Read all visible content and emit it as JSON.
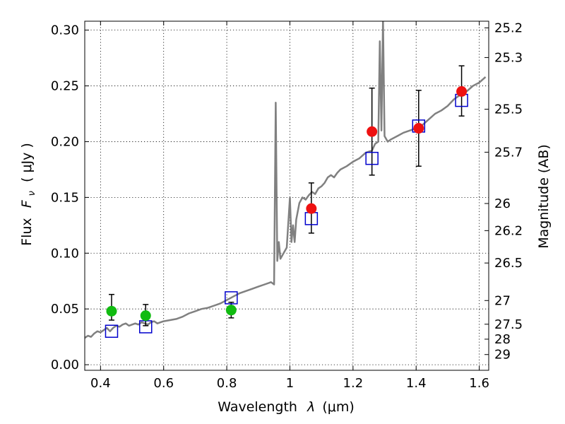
{
  "chart_data": {
    "type": "scatter",
    "xlabel_main": "Wavelength",
    "xlabel_symbol": "λ",
    "xlabel_unit": "(μm)",
    "ylabel_prefix": "Flux",
    "ylabel_symbol": "F",
    "ylabel_subscript": "ν",
    "ylabel_unit": "( μJy )",
    "y2label": "Magnitude (AB)",
    "xlim": [
      0.35,
      1.63
    ],
    "ylim": [
      -0.005,
      0.308
    ],
    "grid": true,
    "x_ticks": [
      {
        "value": 0.4,
        "label": "0.4"
      },
      {
        "value": 0.6,
        "label": "0.6"
      },
      {
        "value": 0.8,
        "label": "0.8"
      },
      {
        "value": 1.0,
        "label": "1"
      },
      {
        "value": 1.2,
        "label": "1.2"
      },
      {
        "value": 1.4,
        "label": "1.4"
      },
      {
        "value": 1.6,
        "label": "1.6"
      }
    ],
    "y_ticks": [
      {
        "value": 0.0,
        "label": "0.00"
      },
      {
        "value": 0.05,
        "label": "0.05"
      },
      {
        "value": 0.1,
        "label": "0.10"
      },
      {
        "value": 0.15,
        "label": "0.15"
      },
      {
        "value": 0.2,
        "label": "0.20"
      },
      {
        "value": 0.25,
        "label": "0.25"
      },
      {
        "value": 0.3,
        "label": "0.30"
      }
    ],
    "y2_ticks": [
      {
        "label": "25.2",
        "mag": 25.2
      },
      {
        "label": "25.3",
        "mag": 25.3
      },
      {
        "label": "25.5",
        "mag": 25.5
      },
      {
        "label": "25.7",
        "mag": 25.7
      },
      {
        "label": "26",
        "mag": 26
      },
      {
        "label": "26.2",
        "mag": 26.2
      },
      {
        "label": "26.5",
        "mag": 26.5
      },
      {
        "label": "27",
        "mag": 27
      },
      {
        "label": "27.5",
        "mag": 27.5
      },
      {
        "label": "28",
        "mag": 28
      },
      {
        "label": "29",
        "mag": 29
      }
    ],
    "colors": {
      "model": "#808080",
      "optical_points": "#11bb11",
      "nir_points": "#ee1111",
      "model_boxes": "#0000cc",
      "errorbars": "#000000"
    },
    "model_spectrum": {
      "x": [
        0.35,
        0.36,
        0.37,
        0.38,
        0.39,
        0.4,
        0.41,
        0.42,
        0.43,
        0.44,
        0.45,
        0.46,
        0.47,
        0.48,
        0.49,
        0.5,
        0.51,
        0.52,
        0.53,
        0.54,
        0.55,
        0.56,
        0.57,
        0.58,
        0.59,
        0.6,
        0.62,
        0.64,
        0.66,
        0.68,
        0.7,
        0.72,
        0.74,
        0.76,
        0.78,
        0.8,
        0.82,
        0.84,
        0.86,
        0.88,
        0.9,
        0.92,
        0.94,
        0.95,
        0.955,
        0.96,
        0.965,
        0.97,
        0.98,
        0.99,
        1.0,
        1.005,
        1.01,
        1.015,
        1.02,
        1.03,
        1.04,
        1.05,
        1.06,
        1.07,
        1.08,
        1.09,
        1.1,
        1.11,
        1.12,
        1.13,
        1.14,
        1.15,
        1.16,
        1.18,
        1.2,
        1.22,
        1.24,
        1.26,
        1.27,
        1.28,
        1.285,
        1.29,
        1.295,
        1.3,
        1.31,
        1.32,
        1.34,
        1.36,
        1.38,
        1.4,
        1.42,
        1.44,
        1.46,
        1.48,
        1.5,
        1.52,
        1.54,
        1.56,
        1.58,
        1.6,
        1.62
      ],
      "y": [
        0.024,
        0.026,
        0.025,
        0.028,
        0.03,
        0.029,
        0.031,
        0.033,
        0.03,
        0.033,
        0.035,
        0.034,
        0.036,
        0.037,
        0.035,
        0.036,
        0.037,
        0.036,
        0.038,
        0.037,
        0.036,
        0.038,
        0.039,
        0.037,
        0.038,
        0.039,
        0.04,
        0.041,
        0.043,
        0.046,
        0.048,
        0.05,
        0.051,
        0.053,
        0.055,
        0.058,
        0.061,
        0.064,
        0.066,
        0.068,
        0.07,
        0.072,
        0.074,
        0.072,
        0.235,
        0.093,
        0.11,
        0.095,
        0.1,
        0.105,
        0.15,
        0.11,
        0.125,
        0.11,
        0.13,
        0.145,
        0.15,
        0.148,
        0.152,
        0.155,
        0.153,
        0.158,
        0.16,
        0.163,
        0.168,
        0.17,
        0.168,
        0.172,
        0.175,
        0.178,
        0.182,
        0.185,
        0.19,
        0.192,
        0.198,
        0.2,
        0.29,
        0.21,
        0.31,
        0.205,
        0.2,
        0.202,
        0.205,
        0.208,
        0.21,
        0.212,
        0.215,
        0.22,
        0.225,
        0.228,
        0.232,
        0.238,
        0.242,
        0.245,
        0.25,
        0.253,
        0.258
      ]
    },
    "observed_points": [
      {
        "band": "optical",
        "x": 0.435,
        "y": 0.048,
        "yerr_low": 0.04,
        "yerr_high": 0.063
      },
      {
        "band": "optical",
        "x": 0.543,
        "y": 0.044,
        "yerr_low": 0.035,
        "yerr_high": 0.054
      },
      {
        "band": "optical",
        "x": 0.814,
        "y": 0.049,
        "yerr_low": 0.042,
        "yerr_high": 0.056
      },
      {
        "band": "nir",
        "x": 1.068,
        "y": 0.14,
        "yerr_low": 0.118,
        "yerr_high": 0.163
      },
      {
        "band": "nir",
        "x": 1.26,
        "y": 0.209,
        "yerr_low": 0.17,
        "yerr_high": 0.248
      },
      {
        "band": "nir",
        "x": 1.408,
        "y": 0.212,
        "yerr_low": 0.178,
        "yerr_high": 0.246
      },
      {
        "band": "nir",
        "x": 1.544,
        "y": 0.245,
        "yerr_low": 0.223,
        "yerr_high": 0.268
      }
    ],
    "model_boxes": [
      {
        "x": 0.435,
        "y": 0.03
      },
      {
        "x": 0.543,
        "y": 0.034
      },
      {
        "x": 0.814,
        "y": 0.06
      },
      {
        "x": 1.068,
        "y": 0.131
      },
      {
        "x": 1.26,
        "y": 0.185
      },
      {
        "x": 1.408,
        "y": 0.214
      },
      {
        "x": 1.544,
        "y": 0.237
      }
    ]
  }
}
